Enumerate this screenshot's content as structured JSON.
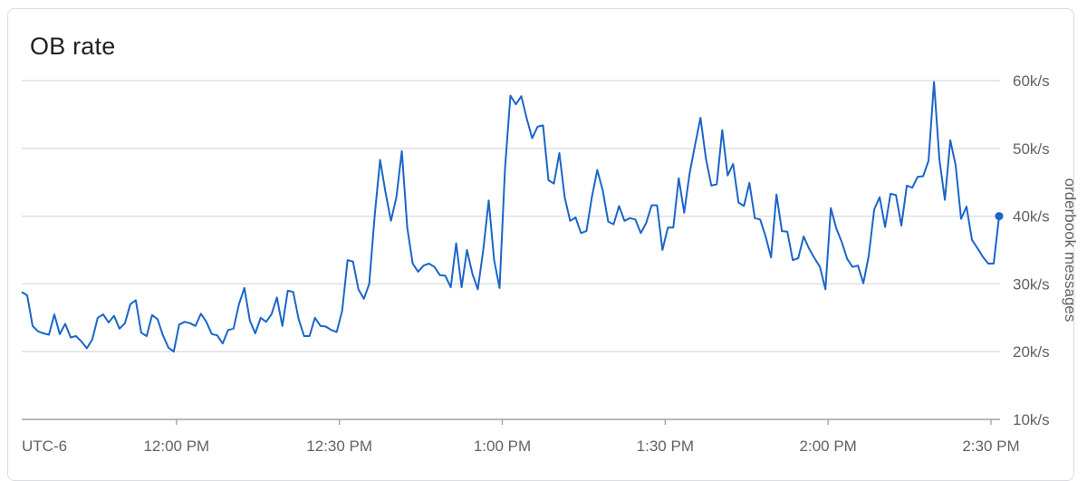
{
  "chart_data": {
    "type": "line",
    "title": "OB rate",
    "ylabel": "orderbook messages",
    "timezone_label": "UTC-6",
    "x_ticks": [
      {
        "minutes": 0,
        "label": "12:00 PM"
      },
      {
        "minutes": 30,
        "label": "12:30 PM"
      },
      {
        "minutes": 60,
        "label": "1:00 PM"
      },
      {
        "minutes": 90,
        "label": "1:30 PM"
      },
      {
        "minutes": 120,
        "label": "2:00 PM"
      },
      {
        "minutes": 150,
        "label": "2:30 PM"
      }
    ],
    "xlim": [
      -28.5,
      152
    ],
    "ylim": [
      10000,
      60000
    ],
    "y_ticks": [
      {
        "value": 10000,
        "label": "10k/s"
      },
      {
        "value": 20000,
        "label": "20k/s"
      },
      {
        "value": 30000,
        "label": "30k/s"
      },
      {
        "value": 40000,
        "label": "40k/s"
      },
      {
        "value": 50000,
        "label": "50k/s"
      },
      {
        "value": 60000,
        "label": "60k/s"
      }
    ],
    "grid": true,
    "color": "#1a66c9",
    "series": [
      {
        "x": [
          -28.5,
          -27.5,
          -26.5,
          -25.5,
          -24.5,
          -23.5,
          -22.5,
          -21.5,
          -20.5,
          -19.5,
          -18.5,
          -17.5,
          -16.5,
          -15.5,
          -14.5,
          -13.5,
          -12.5,
          -11.5,
          -10.5,
          -9.5,
          -8.5,
          -7.5,
          -6.5,
          -5.5,
          -4.5,
          -3.5,
          -2.5,
          -1.5,
          -0.5,
          0.5,
          1.5,
          2.5,
          3.5,
          4.5,
          5.5,
          6.5,
          7.5,
          8.5,
          9.5,
          10.5,
          11.5,
          12.5,
          13.5,
          14.5,
          15.5,
          16.5,
          17.5,
          18.5,
          19.5,
          20.5,
          21.5,
          22.5,
          23.5,
          24.5,
          25.5,
          26.5,
          27.5,
          28.5,
          29.5,
          30.5,
          31.5,
          32.5,
          33.5,
          34.5,
          35.5,
          36.5,
          37.5,
          38.5,
          39.5,
          40.5,
          41.5,
          42.5,
          43.5,
          44.5,
          45.5,
          46.5,
          47.5,
          48.5,
          49.5,
          50.5,
          51.5,
          52.5,
          53.5,
          54.5,
          55.5,
          56.5,
          57.5,
          58.5,
          59.5,
          60.5,
          61.5,
          62.5,
          63.5,
          64.5,
          65.5,
          66.5,
          67.5,
          68.5,
          69.5,
          70.5,
          71.5,
          72.5,
          73.5,
          74.5,
          75.5,
          76.5,
          77.5,
          78.5,
          79.5,
          80.5,
          81.5,
          82.5,
          83.5,
          84.5,
          85.5,
          86.5,
          87.5,
          88.5,
          89.5,
          90.5,
          91.5,
          92.5,
          93.5,
          94.5,
          95.5,
          96.5,
          97.5,
          98.5,
          99.5,
          100.5,
          101.5,
          102.5,
          103.5,
          104.5,
          105.5,
          106.5,
          107.5,
          108.5,
          109.5,
          110.5,
          111.5,
          112.5,
          113.5,
          114.5,
          115.5,
          116.5,
          117.5,
          118.5,
          119.5,
          120.5,
          121.5,
          122.5,
          123.5,
          124.5,
          125.5,
          126.5,
          127.5,
          128.5,
          129.5,
          130.5,
          131.5,
          132.5,
          133.5,
          134.5,
          135.5,
          136.5,
          137.5,
          138.5,
          139.5,
          140.5,
          141.5,
          142.5,
          143.5,
          144.5,
          145.5,
          146.5,
          147.5,
          148.5,
          149.5,
          150.5,
          151.5
        ],
        "y": [
          28800,
          28300,
          23800,
          23000,
          22700,
          22500,
          25500,
          22600,
          24100,
          22100,
          22300,
          21500,
          20500,
          21800,
          25000,
          25500,
          24300,
          25300,
          23400,
          24200,
          27000,
          27600,
          22800,
          22300,
          25400,
          24800,
          22400,
          20600,
          20000,
          24000,
          24400,
          24200,
          23800,
          25600,
          24400,
          22600,
          22400,
          21200,
          23200,
          23400,
          27000,
          29400,
          24600,
          22700,
          25000,
          24400,
          25500,
          28000,
          23800,
          29000,
          28800,
          24800,
          22300,
          22300,
          25000,
          23800,
          23700,
          23200,
          22900,
          26000,
          33500,
          33300,
          29200,
          27800,
          30000,
          40000,
          48300,
          43500,
          39300,
          42800,
          49600,
          38300,
          33000,
          31800,
          32700,
          33000,
          32500,
          31300,
          31200,
          29500,
          36000,
          29500,
          35000,
          31500,
          29200,
          35000,
          42300,
          33500,
          29400,
          47000,
          57800,
          56500,
          57700,
          54400,
          51500,
          53200,
          53400,
          45300,
          44800,
          49300,
          42800,
          39300,
          39800,
          37500,
          37800,
          42800,
          46800,
          43800,
          39200,
          38800,
          41500,
          39300,
          39700,
          39500,
          37500,
          39000,
          41600,
          41600,
          35000,
          38300,
          38300,
          45600,
          40500,
          46300,
          50500,
          54500,
          48500,
          44500,
          44700,
          52700,
          46000,
          47700,
          42000,
          41500,
          44900,
          39700,
          39500,
          37000,
          33900,
          43200,
          37800,
          37700,
          33500,
          33800,
          37000,
          35200,
          33800,
          32500,
          29200,
          41200,
          38200,
          36200,
          33700,
          32500,
          32700,
          30100,
          34200,
          41000,
          42800,
          38400,
          43300,
          43100,
          38600,
          44500,
          44200,
          45800,
          45900,
          48200,
          59800,
          48300,
          42400,
          51200,
          47500,
          39600,
          41400,
          36500,
          35300,
          34000,
          33000,
          33000,
          40000
        ]
      }
    ]
  }
}
